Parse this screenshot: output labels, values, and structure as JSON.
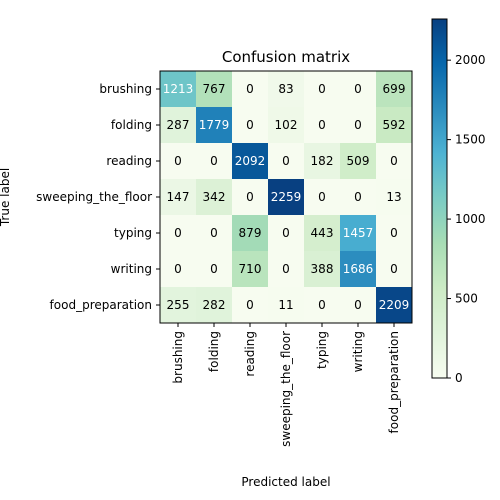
{
  "chart_data": {
    "type": "heatmap",
    "title": "Confusion matrix",
    "xlabel": "Predicted label",
    "ylabel": "True label",
    "categories": [
      "brushing",
      "folding",
      "reading",
      "sweeping_the_floor",
      "typing",
      "writing",
      "food_preparation"
    ],
    "matrix": [
      [
        1213,
        767,
        0,
        83,
        0,
        0,
        699
      ],
      [
        287,
        1779,
        0,
        102,
        0,
        0,
        592
      ],
      [
        0,
        0,
        2092,
        0,
        182,
        509,
        0
      ],
      [
        147,
        342,
        0,
        2259,
        0,
        0,
        13
      ],
      [
        0,
        0,
        879,
        0,
        443,
        1457,
        0
      ],
      [
        0,
        0,
        710,
        0,
        388,
        1686,
        0
      ],
      [
        255,
        282,
        0,
        11,
        0,
        0,
        2209
      ]
    ],
    "colormap": "GnBu",
    "colorbar": {
      "range": [
        0,
        2259
      ],
      "ticks": [
        0,
        500,
        1000,
        1500,
        2000
      ]
    }
  }
}
